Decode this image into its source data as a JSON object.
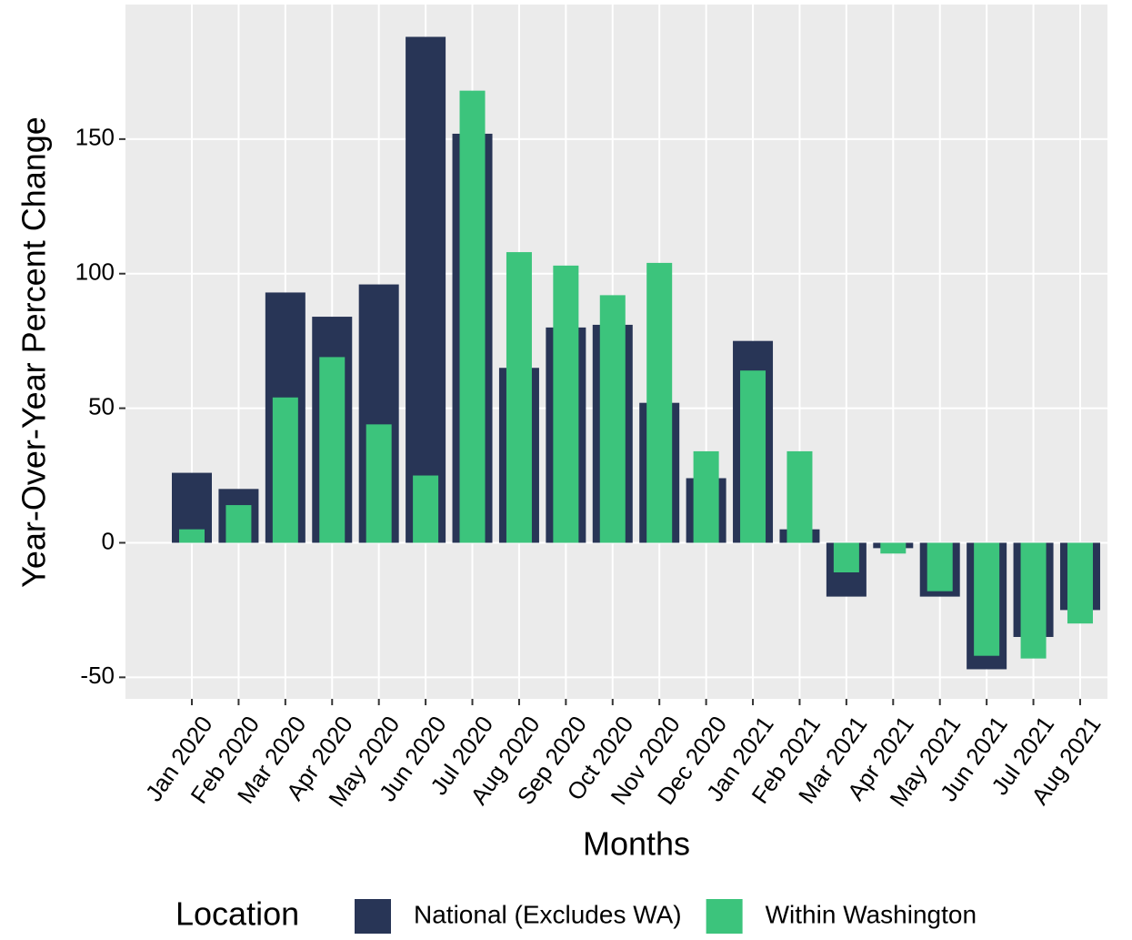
{
  "chart_data": {
    "type": "bar",
    "x_label": "Months",
    "y_label": "Year-Over-Year Percent Change",
    "categories": [
      "Jan 2020",
      "Feb 2020",
      "Mar 2020",
      "Apr 2020",
      "May 2020",
      "Jun 2020",
      "Jul 2020",
      "Aug 2020",
      "Sep 2020",
      "Oct 2020",
      "Nov 2020",
      "Dec 2020",
      "Jan 2021",
      "Feb 2021",
      "Mar 2021",
      "Apr 2021",
      "May 2021",
      "Jun 2021",
      "Jul 2021",
      "Aug 2021"
    ],
    "series": [
      {
        "name": "National (Excludes WA)",
        "color": "#283556",
        "values": [
          26,
          20,
          93,
          84,
          96,
          188,
          152,
          65,
          80,
          81,
          52,
          24,
          75,
          5,
          -20,
          -2,
          -20,
          -47,
          -35,
          -25
        ]
      },
      {
        "name": "Within Washington",
        "color": "#3cc47c",
        "values": [
          5,
          14,
          54,
          69,
          44,
          25,
          168,
          108,
          103,
          92,
          104,
          34,
          64,
          34,
          -11,
          -4,
          -18,
          -42,
          -43,
          -30
        ]
      }
    ],
    "ylim": [
      -58,
      200
    ],
    "yticks": [
      -50,
      0,
      50,
      100,
      150
    ],
    "grid": true,
    "legend_title": "Location",
    "legend_position": "bottom"
  }
}
